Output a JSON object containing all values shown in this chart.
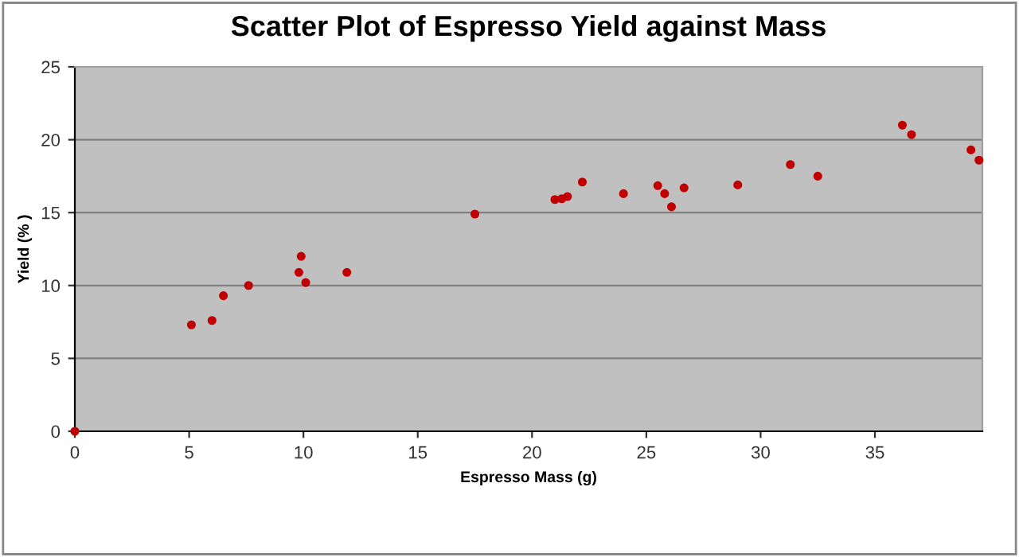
{
  "chart_data": {
    "type": "scatter",
    "title": "Scatter Plot of Espresso Yield against Mass",
    "xlabel": "Espresso Mass (g)",
    "ylabel": "Yield (% )",
    "x": [
      0,
      5.1,
      6.0,
      6.5,
      7.6,
      9.9,
      9.8,
      10.1,
      11.9,
      17.5,
      21.0,
      21.3,
      21.55,
      22.2,
      24.0,
      25.5,
      25.8,
      26.1,
      26.65,
      29.0,
      31.3,
      32.5,
      36.2,
      36.6,
      39.2,
      39.55
    ],
    "values": [
      0,
      7.3,
      7.6,
      9.3,
      10.0,
      12.0,
      10.9,
      10.2,
      10.9,
      14.9,
      15.9,
      15.95,
      16.1,
      17.1,
      16.3,
      16.85,
      16.3,
      15.4,
      16.7,
      16.9,
      18.3,
      17.5,
      21.0,
      20.35,
      19.3,
      18.6
    ],
    "color": "#c00000",
    "marker": "circle",
    "xlim": [
      0,
      39.7
    ],
    "ylim": [
      0,
      25
    ],
    "xticks": [
      0,
      5,
      10,
      15,
      20,
      25,
      30,
      35
    ],
    "yticks": [
      0,
      5,
      10,
      15,
      20,
      25
    ],
    "grid": "y",
    "legend": false
  }
}
